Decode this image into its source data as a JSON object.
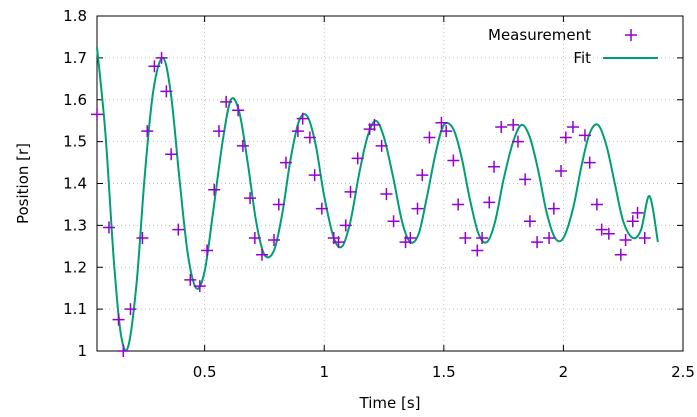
{
  "chart_data": {
    "type": "line",
    "xlabel": "Time [s]",
    "ylabel": "Position [r]",
    "xlim": [
      0.05,
      2.5
    ],
    "ylim": [
      1.0,
      1.8
    ],
    "xticks": [
      0.5,
      1,
      1.5,
      2,
      2.5
    ],
    "xtick_labels": [
      "0.5",
      "1",
      "1.5",
      "2",
      "2.5"
    ],
    "yticks": [
      1.0,
      1.1,
      1.2,
      1.3,
      1.4,
      1.5,
      1.6,
      1.7,
      1.8
    ],
    "ytick_labels": [
      "1",
      "1.1",
      "1.2",
      "1.3",
      "1.4",
      "1.5",
      "1.6",
      "1.7",
      "1.8"
    ],
    "grid": true,
    "legend_position": "top-right",
    "colors": {
      "measurement": "#9400d3",
      "fit": "#009e73"
    },
    "series": [
      {
        "name": "Measurement",
        "style": "points",
        "marker": "+",
        "x": [
          0.05,
          0.1,
          0.14,
          0.16,
          0.19,
          0.24,
          0.26,
          0.29,
          0.32,
          0.34,
          0.36,
          0.39,
          0.44,
          0.48,
          0.51,
          0.54,
          0.56,
          0.59,
          0.64,
          0.66,
          0.69,
          0.71,
          0.74,
          0.79,
          0.81,
          0.84,
          0.89,
          0.91,
          0.94,
          0.96,
          0.99,
          1.04,
          1.06,
          1.09,
          1.11,
          1.14,
          1.19,
          1.21,
          1.24,
          1.26,
          1.29,
          1.34,
          1.36,
          1.39,
          1.41,
          1.44,
          1.49,
          1.51,
          1.54,
          1.56,
          1.59,
          1.64,
          1.66,
          1.69,
          1.71,
          1.74,
          1.79,
          1.81,
          1.84,
          1.86,
          1.89,
          1.94,
          1.96,
          1.99,
          2.01,
          2.04,
          2.09,
          2.11,
          2.14,
          2.16,
          2.19,
          2.24,
          2.26,
          2.29,
          2.31,
          2.34
        ],
        "y": [
          1.565,
          1.295,
          1.075,
          1.0,
          1.1,
          1.27,
          1.525,
          1.68,
          1.7,
          1.62,
          1.47,
          1.29,
          1.17,
          1.155,
          1.24,
          1.385,
          1.525,
          1.595,
          1.575,
          1.49,
          1.365,
          1.27,
          1.23,
          1.265,
          1.35,
          1.45,
          1.525,
          1.555,
          1.51,
          1.42,
          1.34,
          1.27,
          1.26,
          1.3,
          1.38,
          1.46,
          1.53,
          1.54,
          1.49,
          1.375,
          1.31,
          1.26,
          1.27,
          1.34,
          1.42,
          1.51,
          1.545,
          1.525,
          1.455,
          1.35,
          1.27,
          1.24,
          1.27,
          1.355,
          1.44,
          1.535,
          1.54,
          1.5,
          1.41,
          1.31,
          1.26,
          1.27,
          1.34,
          1.43,
          1.51,
          1.535,
          1.515,
          1.45,
          1.35,
          1.29,
          1.28,
          1.23,
          1.265,
          1.31,
          1.33,
          1.27
        ]
      },
      {
        "name": "Fit",
        "style": "line",
        "x": [
          0.05,
          0.085,
          0.12,
          0.15,
          0.18,
          0.215,
          0.25,
          0.285,
          0.325,
          0.36,
          0.395,
          0.43,
          0.465,
          0.5,
          0.535,
          0.575,
          0.61,
          0.645,
          0.68,
          0.715,
          0.75,
          0.79,
          0.825,
          0.86,
          0.895,
          0.93,
          0.965,
          1.0,
          1.04,
          1.075,
          1.11,
          1.145,
          1.18,
          1.215,
          1.25,
          1.29,
          1.325,
          1.36,
          1.395,
          1.43,
          1.465,
          1.5,
          1.54,
          1.575,
          1.61,
          1.645,
          1.68,
          1.715,
          1.75,
          1.79,
          1.825,
          1.86,
          1.895,
          1.93,
          1.965,
          2.0,
          2.04,
          2.075,
          2.11,
          2.145,
          2.18,
          2.215,
          2.25,
          2.29,
          2.325,
          2.36,
          2.395
        ],
        "y": [
          1.725,
          1.52,
          1.22,
          1.04,
          1.01,
          1.16,
          1.42,
          1.62,
          1.7,
          1.61,
          1.41,
          1.23,
          1.15,
          1.19,
          1.33,
          1.5,
          1.6,
          1.57,
          1.45,
          1.31,
          1.23,
          1.24,
          1.33,
          1.46,
          1.55,
          1.56,
          1.49,
          1.37,
          1.27,
          1.25,
          1.31,
          1.42,
          1.51,
          1.55,
          1.51,
          1.41,
          1.31,
          1.26,
          1.28,
          1.37,
          1.47,
          1.54,
          1.53,
          1.46,
          1.36,
          1.28,
          1.26,
          1.31,
          1.41,
          1.5,
          1.54,
          1.51,
          1.43,
          1.33,
          1.27,
          1.27,
          1.34,
          1.44,
          1.52,
          1.54,
          1.49,
          1.4,
          1.31,
          1.27,
          1.29,
          1.37,
          1.26
        ]
      }
    ]
  }
}
